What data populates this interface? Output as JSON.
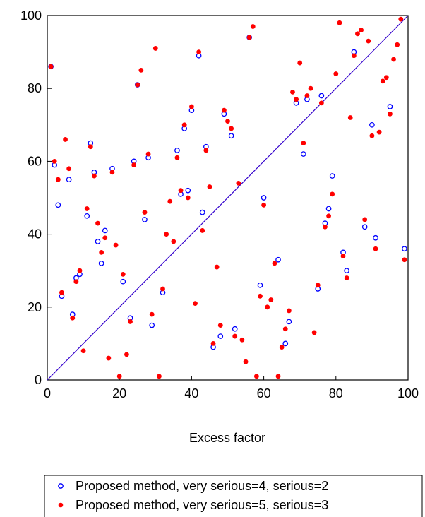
{
  "chart_data": {
    "type": "scatter",
    "xlabel": "Excess factor",
    "ylabel": "",
    "xlim": [
      0,
      100
    ],
    "ylim": [
      0,
      100
    ],
    "x_ticks": [
      "0",
      "20",
      "40",
      "60",
      "80",
      "100"
    ],
    "y_ticks": [
      "0",
      "20",
      "40",
      "60",
      "80",
      "100"
    ],
    "grid": false,
    "legend_position": "bottom",
    "reference_line": {
      "from": [
        0,
        0
      ],
      "to": [
        100,
        100
      ],
      "color": "#3300cc"
    },
    "series": [
      {
        "name": "Proposed method, very serious=4, serious=2",
        "marker": "open-circle",
        "color": "#0000ff",
        "points": [
          [
            1,
            86
          ],
          [
            2,
            59
          ],
          [
            3,
            48
          ],
          [
            4,
            23
          ],
          [
            6,
            55
          ],
          [
            7,
            18
          ],
          [
            8,
            28
          ],
          [
            9,
            29
          ],
          [
            11,
            45
          ],
          [
            12,
            65
          ],
          [
            13,
            57
          ],
          [
            14,
            38
          ],
          [
            15,
            32
          ],
          [
            16,
            41
          ],
          [
            18,
            58
          ],
          [
            21,
            27
          ],
          [
            23,
            17
          ],
          [
            24,
            60
          ],
          [
            25,
            81
          ],
          [
            27,
            44
          ],
          [
            28,
            61
          ],
          [
            29,
            15
          ],
          [
            32,
            24
          ],
          [
            36,
            63
          ],
          [
            37,
            51
          ],
          [
            38,
            69
          ],
          [
            39,
            52
          ],
          [
            40,
            74
          ],
          [
            42,
            89
          ],
          [
            43,
            46
          ],
          [
            44,
            64
          ],
          [
            46,
            9
          ],
          [
            48,
            12
          ],
          [
            49,
            73
          ],
          [
            51,
            67
          ],
          [
            52,
            14
          ],
          [
            56,
            94
          ],
          [
            59,
            26
          ],
          [
            60,
            50
          ],
          [
            64,
            33
          ],
          [
            66,
            10
          ],
          [
            67,
            16
          ],
          [
            69,
            76
          ],
          [
            71,
            62
          ],
          [
            72,
            77
          ],
          [
            75,
            25
          ],
          [
            76,
            78
          ],
          [
            77,
            43
          ],
          [
            78,
            47
          ],
          [
            79,
            56
          ],
          [
            82,
            35
          ],
          [
            83,
            30
          ],
          [
            85,
            90
          ],
          [
            88,
            42
          ],
          [
            90,
            70
          ],
          [
            91,
            39
          ],
          [
            95,
            75
          ],
          [
            99,
            36
          ]
        ]
      },
      {
        "name": "Proposed method, very serious=5, serious=3",
        "marker": "filled-dot",
        "color": "#ff0000",
        "points": [
          [
            1,
            86
          ],
          [
            2,
            60
          ],
          [
            3,
            55
          ],
          [
            4,
            24
          ],
          [
            5,
            66
          ],
          [
            6,
            58
          ],
          [
            7,
            17
          ],
          [
            8,
            27
          ],
          [
            9,
            30
          ],
          [
            10,
            8
          ],
          [
            11,
            47
          ],
          [
            12,
            64
          ],
          [
            13,
            56
          ],
          [
            14,
            43
          ],
          [
            15,
            35
          ],
          [
            16,
            39
          ],
          [
            17,
            6
          ],
          [
            18,
            57
          ],
          [
            19,
            37
          ],
          [
            20,
            1
          ],
          [
            21,
            29
          ],
          [
            22,
            7
          ],
          [
            23,
            16
          ],
          [
            24,
            59
          ],
          [
            25,
            81
          ],
          [
            26,
            85
          ],
          [
            27,
            46
          ],
          [
            28,
            62
          ],
          [
            29,
            18
          ],
          [
            30,
            91
          ],
          [
            31,
            1
          ],
          [
            32,
            25
          ],
          [
            33,
            40
          ],
          [
            34,
            49
          ],
          [
            35,
            38
          ],
          [
            36,
            61
          ],
          [
            37,
            52
          ],
          [
            38,
            70
          ],
          [
            39,
            50
          ],
          [
            40,
            75
          ],
          [
            41,
            21
          ],
          [
            42,
            90
          ],
          [
            43,
            41
          ],
          [
            44,
            63
          ],
          [
            45,
            53
          ],
          [
            46,
            10
          ],
          [
            47,
            31
          ],
          [
            48,
            15
          ],
          [
            49,
            74
          ],
          [
            50,
            71
          ],
          [
            51,
            69
          ],
          [
            52,
            12
          ],
          [
            53,
            54
          ],
          [
            54,
            11
          ],
          [
            55,
            5
          ],
          [
            56,
            94
          ],
          [
            57,
            97
          ],
          [
            58,
            1
          ],
          [
            59,
            23
          ],
          [
            60,
            48
          ],
          [
            61,
            20
          ],
          [
            62,
            22
          ],
          [
            63,
            32
          ],
          [
            64,
            1
          ],
          [
            65,
            9
          ],
          [
            66,
            14
          ],
          [
            67,
            19
          ],
          [
            68,
            79
          ],
          [
            69,
            77
          ],
          [
            70,
            87
          ],
          [
            71,
            65
          ],
          [
            72,
            78
          ],
          [
            73,
            80
          ],
          [
            74,
            13
          ],
          [
            75,
            26
          ],
          [
            76,
            76
          ],
          [
            77,
            42
          ],
          [
            78,
            45
          ],
          [
            79,
            51
          ],
          [
            80,
            84
          ],
          [
            81,
            98
          ],
          [
            82,
            34
          ],
          [
            83,
            28
          ],
          [
            84,
            72
          ],
          [
            85,
            89
          ],
          [
            86,
            95
          ],
          [
            87,
            96
          ],
          [
            88,
            44
          ],
          [
            89,
            93
          ],
          [
            90,
            67
          ],
          [
            91,
            36
          ],
          [
            92,
            68
          ],
          [
            93,
            82
          ],
          [
            94,
            83
          ],
          [
            95,
            73
          ],
          [
            96,
            88
          ],
          [
            97,
            92
          ],
          [
            98,
            99
          ],
          [
            99,
            33
          ]
        ]
      }
    ]
  }
}
